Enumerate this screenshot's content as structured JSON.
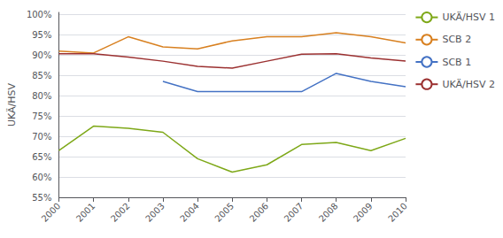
{
  "chart_data": {
    "type": "line",
    "ylabel": "UKÄ/HSV",
    "x": [
      2000,
      2001,
      2002,
      2003,
      2004,
      2005,
      2006,
      2007,
      2008,
      2009,
      2010
    ],
    "series": [
      {
        "name": "UKÄ/HSV 1",
        "color": "#7EA818",
        "values": [
          0.665,
          0.725,
          0.72,
          0.71,
          0.645,
          0.612,
          0.63,
          0.68,
          0.685,
          0.665,
          0.695
        ]
      },
      {
        "name": "SCB 2",
        "color": "#D88020",
        "values": [
          0.91,
          0.905,
          0.945,
          0.92,
          0.915,
          0.935,
          0.945,
          0.945,
          0.955,
          0.945,
          0.93
        ]
      },
      {
        "name": "SCB 1",
        "color": "#4472C4",
        "values": [
          null,
          null,
          null,
          0.835,
          0.81,
          0.81,
          0.81,
          0.81,
          0.855,
          0.835,
          0.822
        ]
      },
      {
        "name": "UKÄ/HSV 2",
        "color": "#9B3030",
        "values": [
          0.903,
          0.903,
          0.895,
          0.885,
          0.872,
          0.868,
          0.885,
          0.902,
          0.903,
          0.893,
          0.885
        ]
      }
    ],
    "xlim": [
      2000,
      2010
    ],
    "xticks": [
      2000,
      2001,
      2002,
      2003,
      2004,
      2005,
      2006,
      2007,
      2008,
      2009,
      2010
    ],
    "ylim": [
      0.55,
      1.005
    ],
    "yticks": [
      {
        "value": 0.55,
        "label": "55%"
      },
      {
        "value": 0.6,
        "label": "60%"
      },
      {
        "value": 0.65,
        "label": "65%"
      },
      {
        "value": 0.7,
        "label": "70%"
      },
      {
        "value": 0.75,
        "label": "75%"
      },
      {
        "value": 0.8,
        "label": "80%"
      },
      {
        "value": 0.85,
        "label": "85%"
      },
      {
        "value": 0.9,
        "label": "90%"
      },
      {
        "value": 0.95,
        "label": "95%"
      },
      {
        "value": 1.0,
        "label": "100%"
      }
    ],
    "grid": true,
    "legend": "right"
  }
}
